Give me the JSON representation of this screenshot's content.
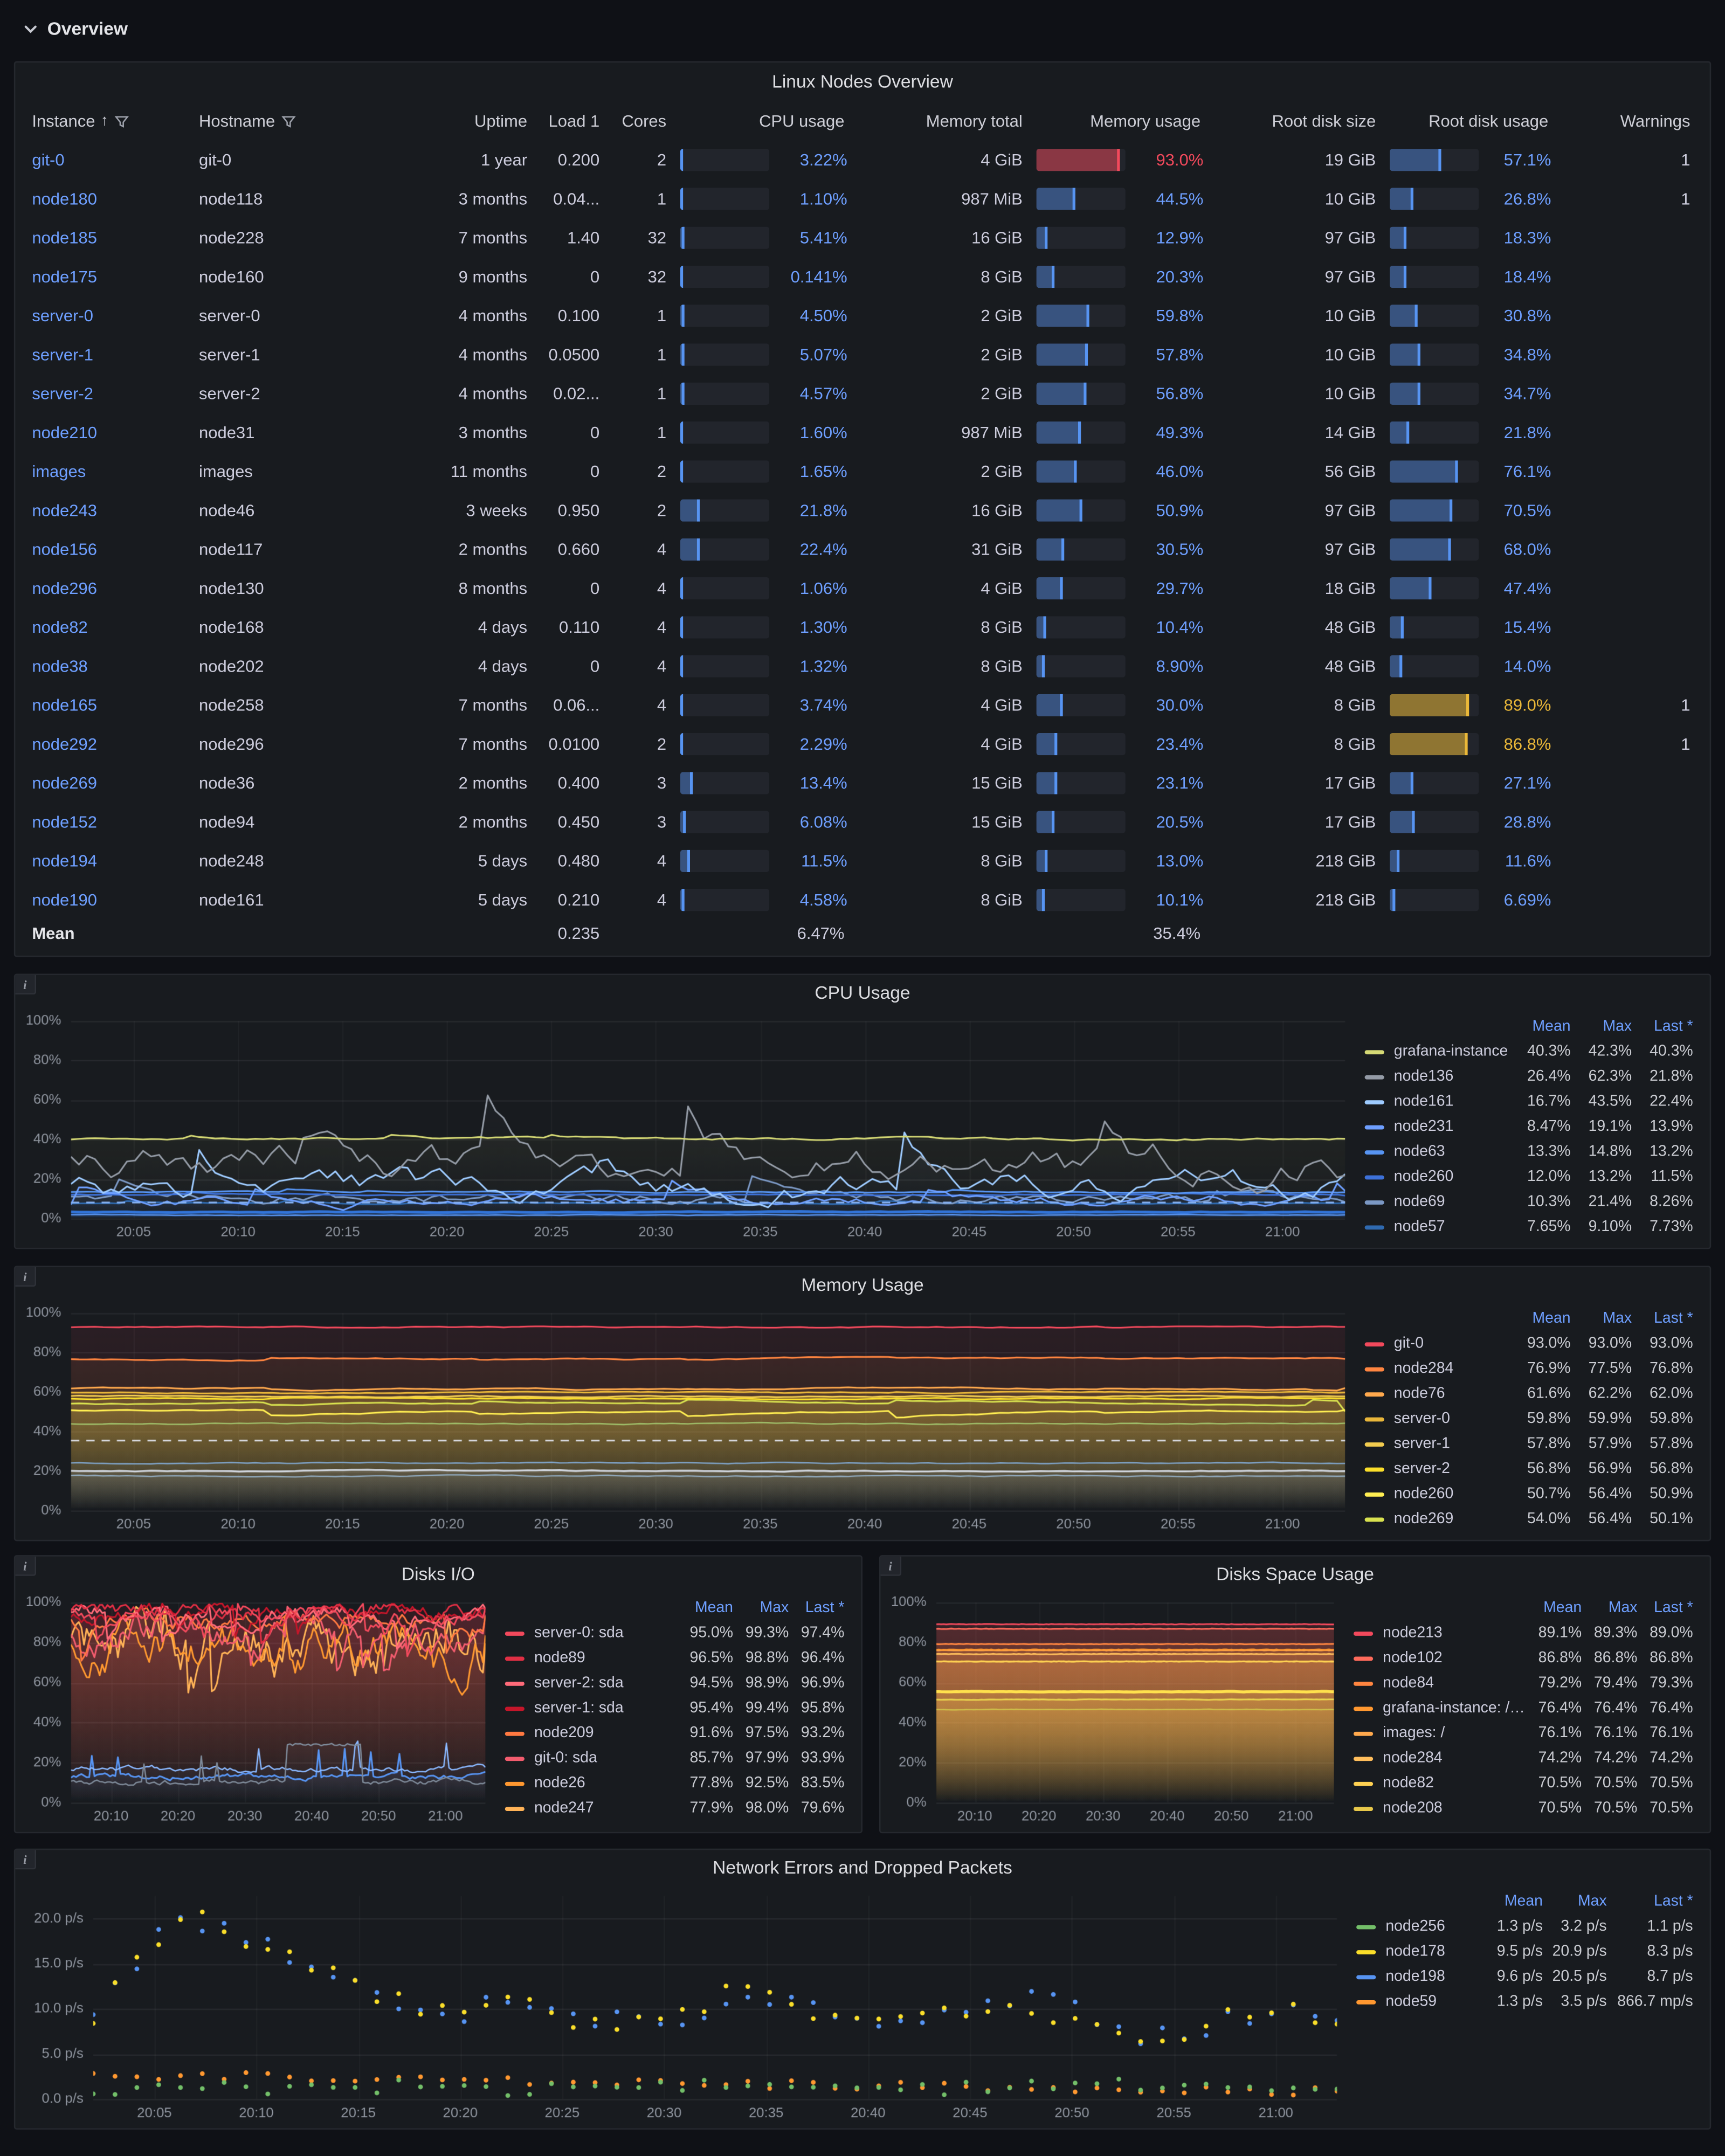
{
  "section": {
    "title": "Overview"
  },
  "colors": {
    "blue": "#5794f2",
    "red": "#f2495c",
    "yellow": "#eab839",
    "text_blue": "#6e9fff",
    "panel_bg": "#181b1f",
    "page_bg": "#0f1116"
  },
  "table": {
    "title": "Linux Nodes Overview",
    "columns": [
      "Instance",
      "Hostname",
      "Uptime",
      "Load 1",
      "Cores",
      "CPU usage",
      "Memory total",
      "Memory usage",
      "Root disk size",
      "Root disk usage",
      "Warnings"
    ],
    "rows": [
      {
        "instance": "git-0",
        "hostname": "git-0",
        "uptime": "1 year",
        "load": "0.200",
        "cores": "2",
        "cpu": "3.22%",
        "mem_total": "4 GiB",
        "mem": "93.0%",
        "mem_color": "red",
        "disk_size": "19 GiB",
        "disk": "57.1%",
        "warnings": "1"
      },
      {
        "instance": "node180",
        "hostname": "node118",
        "uptime": "3 months",
        "load": "0.04...",
        "cores": "1",
        "cpu": "1.10%",
        "mem_total": "987 MiB",
        "mem": "44.5%",
        "disk_size": "10 GiB",
        "disk": "26.8%",
        "warnings": "1"
      },
      {
        "instance": "node185",
        "hostname": "node228",
        "uptime": "7 months",
        "load": "1.40",
        "cores": "32",
        "cpu": "5.41%",
        "mem_total": "16 GiB",
        "mem": "12.9%",
        "disk_size": "97 GiB",
        "disk": "18.3%"
      },
      {
        "instance": "node175",
        "hostname": "node160",
        "uptime": "9 months",
        "load": "0",
        "cores": "32",
        "cpu": "0.141%",
        "mem_total": "8 GiB",
        "mem": "20.3%",
        "disk_size": "97 GiB",
        "disk": "18.4%"
      },
      {
        "instance": "server-0",
        "hostname": "server-0",
        "uptime": "4 months",
        "load": "0.100",
        "cores": "1",
        "cpu": "4.50%",
        "mem_total": "2 GiB",
        "mem": "59.8%",
        "disk_size": "10 GiB",
        "disk": "30.8%"
      },
      {
        "instance": "server-1",
        "hostname": "server-1",
        "uptime": "4 months",
        "load": "0.0500",
        "cores": "1",
        "cpu": "5.07%",
        "mem_total": "2 GiB",
        "mem": "57.8%",
        "disk_size": "10 GiB",
        "disk": "34.8%"
      },
      {
        "instance": "server-2",
        "hostname": "server-2",
        "uptime": "4 months",
        "load": "0.02...",
        "cores": "1",
        "cpu": "4.57%",
        "mem_total": "2 GiB",
        "mem": "56.8%",
        "disk_size": "10 GiB",
        "disk": "34.7%"
      },
      {
        "instance": "node210",
        "hostname": "node31",
        "uptime": "3 months",
        "load": "0",
        "cores": "1",
        "cpu": "1.60%",
        "mem_total": "987 MiB",
        "mem": "49.3%",
        "disk_size": "14 GiB",
        "disk": "21.8%"
      },
      {
        "instance": "images",
        "hostname": "images",
        "uptime": "11 months",
        "load": "0",
        "cores": "2",
        "cpu": "1.65%",
        "mem_total": "2 GiB",
        "mem": "46.0%",
        "disk_size": "56 GiB",
        "disk": "76.1%"
      },
      {
        "instance": "node243",
        "hostname": "node46",
        "uptime": "3 weeks",
        "load": "0.950",
        "cores": "2",
        "cpu": "21.8%",
        "mem_total": "16 GiB",
        "mem": "50.9%",
        "disk_size": "97 GiB",
        "disk": "70.5%"
      },
      {
        "instance": "node156",
        "hostname": "node117",
        "uptime": "2 months",
        "load": "0.660",
        "cores": "4",
        "cpu": "22.4%",
        "mem_total": "31 GiB",
        "mem": "30.5%",
        "disk_size": "97 GiB",
        "disk": "68.0%"
      },
      {
        "instance": "node296",
        "hostname": "node130",
        "uptime": "8 months",
        "load": "0",
        "cores": "4",
        "cpu": "1.06%",
        "mem_total": "4 GiB",
        "mem": "29.7%",
        "disk_size": "18 GiB",
        "disk": "47.4%"
      },
      {
        "instance": "node82",
        "hostname": "node168",
        "uptime": "4 days",
        "load": "0.110",
        "cores": "4",
        "cpu": "1.30%",
        "mem_total": "8 GiB",
        "mem": "10.4%",
        "disk_size": "48 GiB",
        "disk": "15.4%"
      },
      {
        "instance": "node38",
        "hostname": "node202",
        "uptime": "4 days",
        "load": "0",
        "cores": "4",
        "cpu": "1.32%",
        "mem_total": "8 GiB",
        "mem": "8.90%",
        "disk_size": "48 GiB",
        "disk": "14.0%"
      },
      {
        "instance": "node165",
        "hostname": "node258",
        "uptime": "7 months",
        "load": "0.06...",
        "cores": "4",
        "cpu": "3.74%",
        "mem_total": "4 GiB",
        "mem": "30.0%",
        "disk_size": "8 GiB",
        "disk": "89.0%",
        "disk_color": "yellow",
        "warnings": "1"
      },
      {
        "instance": "node292",
        "hostname": "node296",
        "uptime": "7 months",
        "load": "0.0100",
        "cores": "2",
        "cpu": "2.29%",
        "mem_total": "4 GiB",
        "mem": "23.4%",
        "disk_size": "8 GiB",
        "disk": "86.8%",
        "disk_color": "yellow",
        "warnings": "1"
      },
      {
        "instance": "node269",
        "hostname": "node36",
        "uptime": "2 months",
        "load": "0.400",
        "cores": "3",
        "cpu": "13.4%",
        "mem_total": "15 GiB",
        "mem": "23.1%",
        "disk_size": "17 GiB",
        "disk": "27.1%"
      },
      {
        "instance": "node152",
        "hostname": "node94",
        "uptime": "2 months",
        "load": "0.450",
        "cores": "3",
        "cpu": "6.08%",
        "mem_total": "15 GiB",
        "mem": "20.5%",
        "disk_size": "17 GiB",
        "disk": "28.8%"
      },
      {
        "instance": "node194",
        "hostname": "node248",
        "uptime": "5 days",
        "load": "0.480",
        "cores": "4",
        "cpu": "11.5%",
        "mem_total": "8 GiB",
        "mem": "13.0%",
        "disk_size": "218 GiB",
        "disk": "11.6%"
      },
      {
        "instance": "node190",
        "hostname": "node161",
        "uptime": "5 days",
        "load": "0.210",
        "cores": "4",
        "cpu": "4.58%",
        "mem_total": "8 GiB",
        "mem": "10.1%",
        "disk_size": "218 GiB",
        "disk": "6.69%"
      }
    ],
    "mean": {
      "label": "Mean",
      "load": "0.235",
      "cpu": "6.47%",
      "mem": "35.4%"
    }
  },
  "chart_data": {
    "cpu": {
      "title": "CPU Usage",
      "type": "line",
      "style": "cpu",
      "y_max": 100,
      "y_step": 20,
      "y_ticks": [
        "0%",
        "20%",
        "40%",
        "60%",
        "80%",
        "100%"
      ],
      "x_ticks": [
        "20:05",
        "20:10",
        "20:15",
        "20:20",
        "20:25",
        "20:30",
        "20:35",
        "20:40",
        "20:45",
        "20:50",
        "20:55",
        "21:00"
      ],
      "legend_columns": [
        "Mean",
        "Max",
        "Last *"
      ],
      "series": [
        {
          "name": "grafana-instance",
          "color": "#d5d975",
          "values": [
            "40.3%",
            "42.3%",
            "40.3%"
          ]
        },
        {
          "name": "node136",
          "color": "#949ba6",
          "values": [
            "26.4%",
            "62.3%",
            "21.8%"
          ]
        },
        {
          "name": "node161",
          "color": "#9ecbff",
          "values": [
            "16.7%",
            "43.5%",
            "22.4%"
          ]
        },
        {
          "name": "node231",
          "color": "#6e9fff",
          "values": [
            "8.47%",
            "19.1%",
            "13.9%"
          ]
        },
        {
          "name": "node63",
          "color": "#5794f2",
          "values": [
            "13.3%",
            "14.8%",
            "13.2%"
          ]
        },
        {
          "name": "node260",
          "color": "#3d71d9",
          "values": [
            "12.0%",
            "13.2%",
            "11.5%"
          ]
        },
        {
          "name": "node69",
          "color": "#7b98c4",
          "values": [
            "10.3%",
            "21.4%",
            "8.26%"
          ]
        },
        {
          "name": "node57",
          "color": "#2f6ab0",
          "values": [
            "7.65%",
            "9.10%",
            "7.73%"
          ]
        }
      ],
      "annotations": [
        {
          "y": 8,
          "color": "#86b1f2"
        }
      ],
      "extra_lines": [
        {
          "level": 3.2,
          "color": "#3274d9",
          "lw": 2,
          "fill": 0.3
        },
        {
          "level": 1.7,
          "color": "#5794f2",
          "lw": 1,
          "fill": 0.22
        }
      ]
    },
    "memory": {
      "title": "Memory Usage",
      "type": "line",
      "style": "memory",
      "y_max": 100,
      "y_step": 20,
      "y_ticks": [
        "0%",
        "20%",
        "40%",
        "60%",
        "80%",
        "100%"
      ],
      "x_ticks": [
        "20:05",
        "20:10",
        "20:15",
        "20:20",
        "20:25",
        "20:30",
        "20:35",
        "20:40",
        "20:45",
        "20:50",
        "20:55",
        "21:00"
      ],
      "legend_columns": [
        "Mean",
        "Max",
        "Last *"
      ],
      "series": [
        {
          "name": "git-0",
          "color": "#f2495c",
          "values": [
            "93.0%",
            "93.0%",
            "93.0%"
          ]
        },
        {
          "name": "node284",
          "color": "#ff8540",
          "values": [
            "76.9%",
            "77.5%",
            "76.8%"
          ]
        },
        {
          "name": "node76",
          "color": "#ffa94d",
          "values": [
            "61.6%",
            "62.2%",
            "62.0%"
          ]
        },
        {
          "name": "server-0",
          "color": "#e8b63a",
          "values": [
            "59.8%",
            "59.9%",
            "59.8%"
          ]
        },
        {
          "name": "server-1",
          "color": "#f2cc4f",
          "values": [
            "57.8%",
            "57.9%",
            "57.8%"
          ]
        },
        {
          "name": "server-2",
          "color": "#fade2a",
          "values": [
            "56.8%",
            "56.9%",
            "56.8%"
          ]
        },
        {
          "name": "node260",
          "color": "#ffee52",
          "values": [
            "50.7%",
            "56.4%",
            "50.9%"
          ]
        },
        {
          "name": "node269",
          "color": "#d8e14f",
          "values": [
            "54.0%",
            "56.4%",
            "50.1%"
          ]
        }
      ],
      "annotations": [
        {
          "y": 35.4,
          "color": "#d8d9e0"
        }
      ],
      "extra_lines": [
        {
          "level": 44,
          "color": "#9fbf6a",
          "lw": 1,
          "fill": 0.07
        },
        {
          "level": 24,
          "color": "#7fa3c8",
          "lw": 1,
          "fill": 0.1
        },
        {
          "level": 20,
          "color": "#cdd2da",
          "lw": 1.4,
          "fill": 0.12
        },
        {
          "level": 17.5,
          "color": "#8fa6b8",
          "lw": 1,
          "fill": 0.1
        }
      ]
    },
    "disks_io": {
      "title": "Disks I/O",
      "type": "line",
      "style": "disksio",
      "y_max": 100,
      "y_step": 20,
      "y_ticks": [
        "0%",
        "20%",
        "40%",
        "60%",
        "80%",
        "100%"
      ],
      "x_ticks": [
        "20:10",
        "20:20",
        "20:30",
        "20:40",
        "20:50",
        "21:00"
      ],
      "legend_columns": [
        "Mean",
        "Max",
        "Last *"
      ],
      "series": [
        {
          "name": "server-0: sda",
          "color": "#f2495c",
          "values": [
            "95.0%",
            "99.3%",
            "97.4%"
          ]
        },
        {
          "name": "node89",
          "color": "#e02f44",
          "values": [
            "96.5%",
            "98.8%",
            "96.4%"
          ]
        },
        {
          "name": "server-2: sda",
          "color": "#ff6b7a",
          "values": [
            "94.5%",
            "98.9%",
            "96.9%"
          ]
        },
        {
          "name": "server-1: sda",
          "color": "#c4162a",
          "values": [
            "95.4%",
            "99.4%",
            "95.8%"
          ]
        },
        {
          "name": "node209",
          "color": "#ff7941",
          "values": [
            "91.6%",
            "97.5%",
            "93.2%"
          ]
        },
        {
          "name": "git-0: sda",
          "color": "#f25c6e",
          "values": [
            "85.7%",
            "97.9%",
            "93.9%"
          ]
        },
        {
          "name": "node26",
          "color": "#ff9830",
          "values": [
            "77.8%",
            "92.5%",
            "83.5%"
          ]
        },
        {
          "name": "node247",
          "color": "#ffb357",
          "values": [
            "77.9%",
            "98.0%",
            "79.6%"
          ]
        }
      ],
      "extra_lines": [
        {
          "level": 13,
          "color": "#5794f2",
          "lw": 1.2,
          "fill": 0.16
        },
        {
          "level": 16.5,
          "color": "#8ab8ff",
          "lw": 1,
          "fill": 0.1
        },
        {
          "level": 10.5,
          "color": "#7e8a99",
          "lw": 1,
          "fill": 0.08,
          "step": [
            0.52,
            0.7,
            29
          ]
        }
      ]
    },
    "disks_space": {
      "title": "Disks Space Usage",
      "type": "line",
      "style": "diskspace",
      "y_max": 100,
      "y_step": 20,
      "y_ticks": [
        "0%",
        "20%",
        "40%",
        "60%",
        "80%",
        "100%"
      ],
      "x_ticks": [
        "20:10",
        "20:20",
        "20:30",
        "20:40",
        "20:50",
        "21:00"
      ],
      "legend_columns": [
        "Mean",
        "Max",
        "Last *"
      ],
      "series": [
        {
          "name": "node213",
          "color": "#f2495c",
          "values": [
            "89.1%",
            "89.3%",
            "89.0%"
          ]
        },
        {
          "name": "node102",
          "color": "#ff6b5b",
          "values": [
            "86.8%",
            "86.8%",
            "86.8%"
          ]
        },
        {
          "name": "node84",
          "color": "#ff8540",
          "values": [
            "79.2%",
            "79.4%",
            "79.3%"
          ]
        },
        {
          "name": "grafana-instance: /var",
          "color": "#ff9830",
          "values": [
            "76.4%",
            "76.4%",
            "76.4%"
          ]
        },
        {
          "name": "images: /",
          "color": "#ffa94d",
          "values": [
            "76.1%",
            "76.1%",
            "76.1%"
          ]
        },
        {
          "name": "node284",
          "color": "#ffbe5c",
          "values": [
            "74.2%",
            "74.2%",
            "74.2%"
          ]
        },
        {
          "name": "node82",
          "color": "#ffd152",
          "values": [
            "70.5%",
            "70.5%",
            "70.5%"
          ]
        },
        {
          "name": "node208",
          "color": "#e8c84a",
          "values": [
            "70.5%",
            "70.5%",
            "70.5%"
          ]
        }
      ],
      "extra_lines": [
        {
          "level": 55.4,
          "color": "#ffe14d",
          "lw": 2.2,
          "fill": 0.3
        },
        {
          "level": 51.5,
          "color": "#e8d34e",
          "lw": 1.2,
          "fill": 0.2
        },
        {
          "level": 46.5,
          "color": "#cfc04a",
          "lw": 1,
          "fill": 0.15
        }
      ]
    },
    "network": {
      "title": "Network Errors and Dropped Packets",
      "type": "scatter",
      "style": "scatter",
      "y_max": 22.5,
      "y_step": 5,
      "y_ticks": [
        "0.0 p/s",
        "5.0 p/s",
        "10.0 p/s",
        "15.0 p/s",
        "20.0 p/s"
      ],
      "x_ticks": [
        "20:05",
        "20:10",
        "20:15",
        "20:20",
        "20:25",
        "20:30",
        "20:35",
        "20:40",
        "20:45",
        "20:50",
        "20:55",
        "21:00"
      ],
      "legend_columns": [
        "Mean",
        "Max",
        "Last *"
      ],
      "series": [
        {
          "name": "node256",
          "color": "#73bf69",
          "pattern": "low",
          "values": [
            "1.3 p/s",
            "3.2 p/s",
            "1.1 p/s"
          ]
        },
        {
          "name": "node178",
          "color": "#fade2a",
          "pattern": "burst",
          "values": [
            "9.5 p/s",
            "20.9 p/s",
            "8.3 p/s"
          ]
        },
        {
          "name": "node198",
          "color": "#5794f2",
          "pattern": "burst",
          "values": [
            "9.6 p/s",
            "20.5 p/s",
            "8.7 p/s"
          ]
        },
        {
          "name": "node59",
          "color": "#ff9830",
          "pattern": "decline",
          "values": [
            "1.3 p/s",
            "3.5 p/s",
            "866.7 mp/s"
          ]
        }
      ]
    }
  }
}
